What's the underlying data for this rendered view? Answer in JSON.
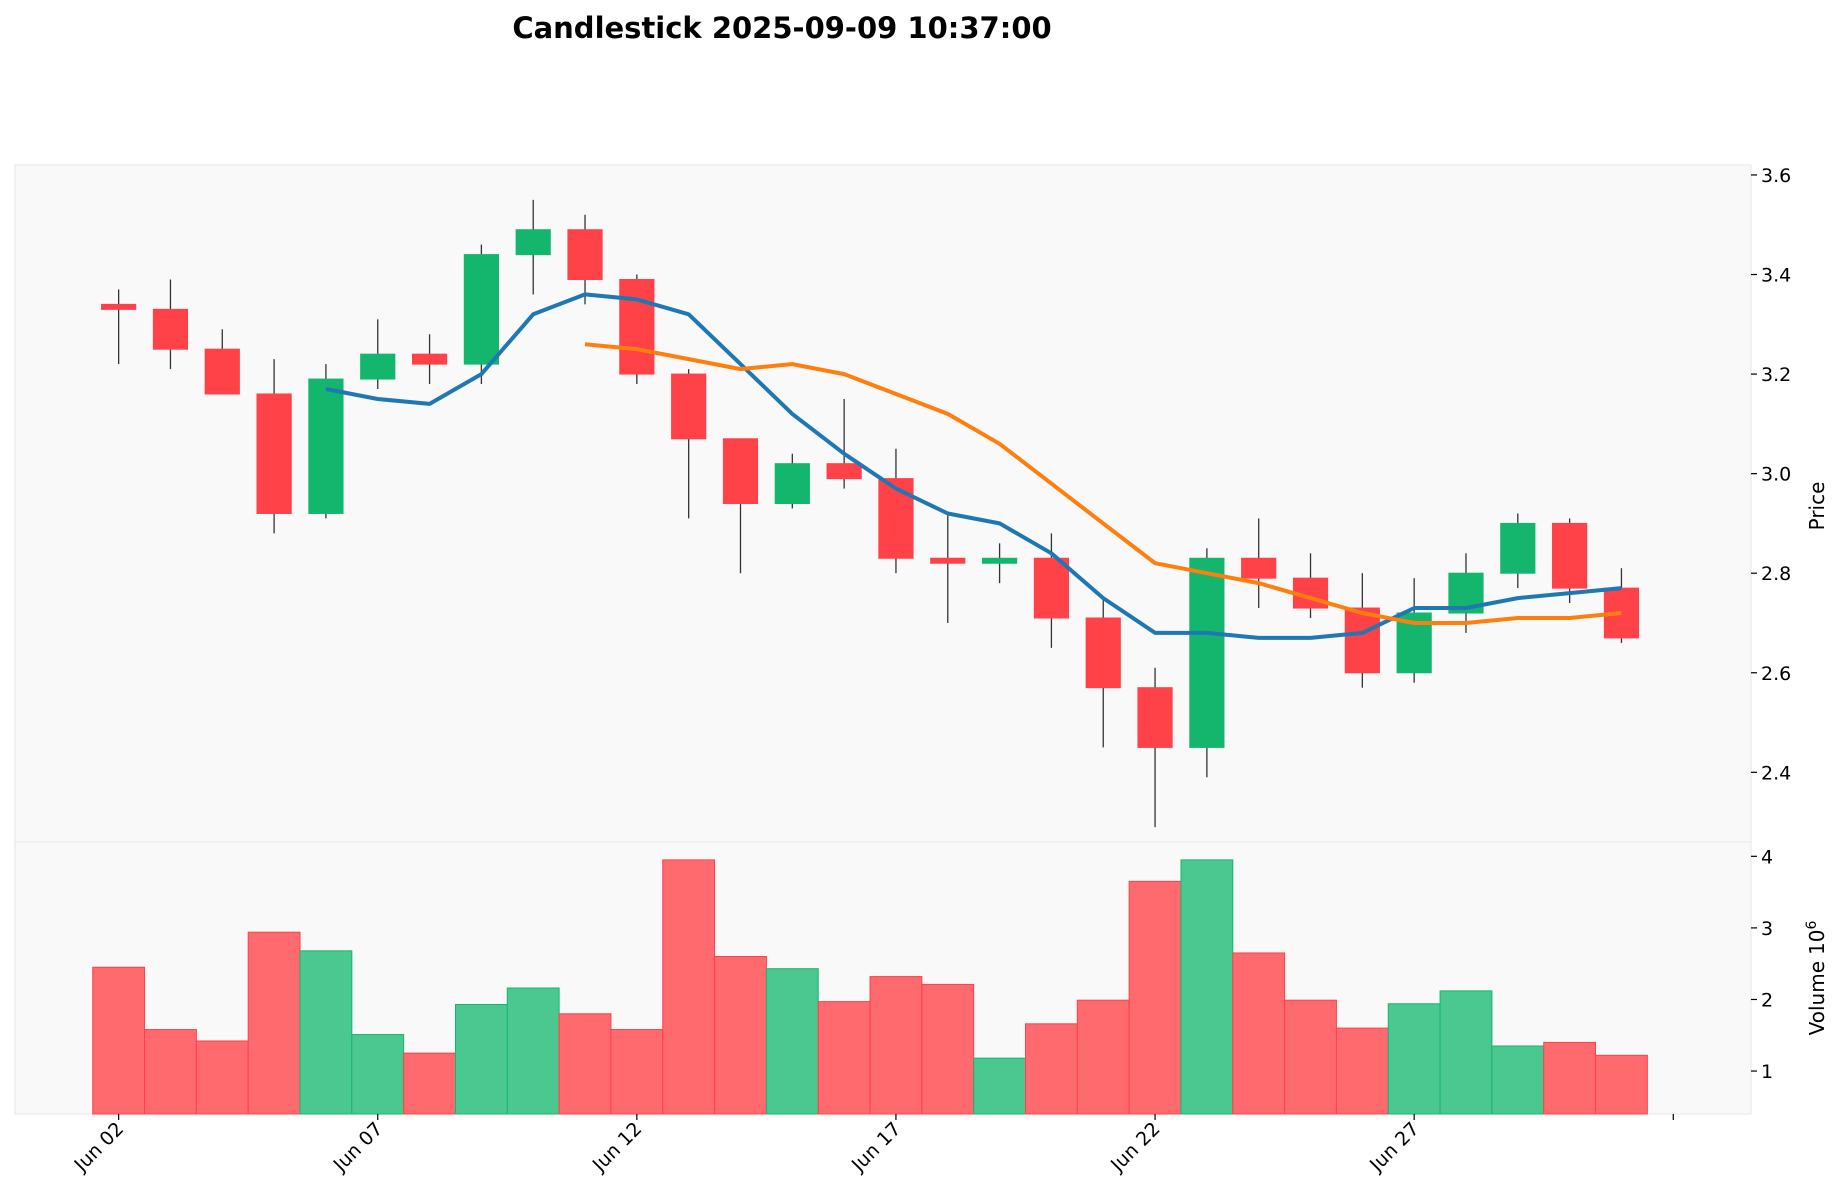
{
  "chart_data": {
    "type": "candlestick",
    "title": "Candlestick 2025-09-09 10:37:00",
    "price_panel": {
      "ylabel": "Price",
      "ylim": [
        2.26,
        3.62
      ],
      "yticks": [
        2.4,
        2.6,
        2.8,
        3.0,
        3.2,
        3.4,
        3.6
      ],
      "ytick_labels": [
        "2.4",
        "2.6",
        "2.8",
        "3.0",
        "3.2",
        "3.4",
        "3.6"
      ],
      "axis_side": "right",
      "background": "#f9f9f9",
      "up_color": "#14b66e",
      "down_color": "#ff4148",
      "wick_color": "#333333"
    },
    "volume_panel": {
      "ylabel": "Volume",
      "ylabel_exponent": "10^6",
      "ylim": [
        0.4,
        4.2
      ],
      "yticks": [
        1,
        2,
        3,
        4
      ],
      "ytick_labels": [
        "1",
        "2",
        "3",
        "4"
      ],
      "axis_side": "right",
      "up_color": "#4bc88f",
      "down_color": "#ff6a6e"
    },
    "x_ticks": [
      "Jun 02",
      "Jun 07",
      "Jun 12",
      "Jun 17",
      "Jun 22",
      "Jun 27",
      ""
    ],
    "x_tick_days": [
      2,
      7,
      12,
      17,
      22,
      27,
      32
    ],
    "x_range_days": [
      0,
      33.5
    ],
    "candles": [
      {
        "date": "Jun 02",
        "day": 2,
        "open": 3.34,
        "high": 3.37,
        "low": 3.22,
        "close": 3.33,
        "volume": 2.45
      },
      {
        "date": "Jun 03",
        "day": 3,
        "open": 3.33,
        "high": 3.39,
        "low": 3.21,
        "close": 3.25,
        "volume": 1.58
      },
      {
        "date": "Jun 04",
        "day": 4,
        "open": 3.25,
        "high": 3.29,
        "low": 3.16,
        "close": 3.16,
        "volume": 1.42
      },
      {
        "date": "Jun 05",
        "day": 5,
        "open": 3.16,
        "high": 3.23,
        "low": 2.88,
        "close": 2.92,
        "volume": 2.94
      },
      {
        "date": "Jun 06",
        "day": 6,
        "open": 2.92,
        "high": 3.22,
        "low": 2.91,
        "close": 3.19,
        "volume": 2.68
      },
      {
        "date": "Jun 07",
        "day": 7,
        "open": 3.19,
        "high": 3.31,
        "low": 3.17,
        "close": 3.24,
        "volume": 1.51
      },
      {
        "date": "Jun 08",
        "day": 8,
        "open": 3.24,
        "high": 3.28,
        "low": 3.18,
        "close": 3.22,
        "volume": 1.25
      },
      {
        "date": "Jun 09",
        "day": 9,
        "open": 3.22,
        "high": 3.46,
        "low": 3.18,
        "close": 3.44,
        "volume": 1.93
      },
      {
        "date": "Jun 10",
        "day": 10,
        "open": 3.44,
        "high": 3.55,
        "low": 3.36,
        "close": 3.49,
        "volume": 2.16
      },
      {
        "date": "Jun 11",
        "day": 11,
        "open": 3.49,
        "high": 3.52,
        "low": 3.34,
        "close": 3.39,
        "volume": 1.8
      },
      {
        "date": "Jun 12",
        "day": 12,
        "open": 3.39,
        "high": 3.4,
        "low": 3.18,
        "close": 3.2,
        "volume": 1.58
      },
      {
        "date": "Jun 13",
        "day": 13,
        "open": 3.2,
        "high": 3.21,
        "low": 2.91,
        "close": 3.07,
        "volume": 3.95
      },
      {
        "date": "Jun 14",
        "day": 14,
        "open": 3.07,
        "high": 3.07,
        "low": 2.8,
        "close": 2.94,
        "volume": 2.6
      },
      {
        "date": "Jun 15",
        "day": 15,
        "open": 2.94,
        "high": 3.04,
        "low": 2.93,
        "close": 3.02,
        "volume": 2.43
      },
      {
        "date": "Jun 16",
        "day": 16,
        "open": 3.02,
        "high": 3.15,
        "low": 2.97,
        "close": 2.99,
        "volume": 1.97
      },
      {
        "date": "Jun 17",
        "day": 17,
        "open": 2.99,
        "high": 3.05,
        "low": 2.8,
        "close": 2.83,
        "volume": 2.32
      },
      {
        "date": "Jun 18",
        "day": 18,
        "open": 2.83,
        "high": 2.92,
        "low": 2.7,
        "close": 2.82,
        "volume": 2.21
      },
      {
        "date": "Jun 19",
        "day": 19,
        "open": 2.82,
        "high": 2.86,
        "low": 2.78,
        "close": 2.83,
        "volume": 1.18
      },
      {
        "date": "Jun 20",
        "day": 20,
        "open": 2.83,
        "high": 2.88,
        "low": 2.65,
        "close": 2.71,
        "volume": 1.66
      },
      {
        "date": "Jun 21",
        "day": 21,
        "open": 2.71,
        "high": 2.75,
        "low": 2.45,
        "close": 2.57,
        "volume": 1.99
      },
      {
        "date": "Jun 22",
        "day": 22,
        "open": 2.57,
        "high": 2.61,
        "low": 2.29,
        "close": 2.45,
        "volume": 3.65
      },
      {
        "date": "Jun 23",
        "day": 23,
        "open": 2.45,
        "high": 2.85,
        "low": 2.39,
        "close": 2.83,
        "volume": 3.95
      },
      {
        "date": "Jun 24",
        "day": 24,
        "open": 2.83,
        "high": 2.91,
        "low": 2.73,
        "close": 2.79,
        "volume": 2.65
      },
      {
        "date": "Jun 25",
        "day": 25,
        "open": 2.79,
        "high": 2.84,
        "low": 2.71,
        "close": 2.73,
        "volume": 1.99
      },
      {
        "date": "Jun 26",
        "day": 26,
        "open": 2.73,
        "high": 2.8,
        "low": 2.57,
        "close": 2.6,
        "volume": 1.6
      },
      {
        "date": "Jun 27",
        "day": 27,
        "open": 2.6,
        "high": 2.79,
        "low": 2.58,
        "close": 2.72,
        "volume": 1.94
      },
      {
        "date": "Jun 28",
        "day": 28,
        "open": 2.72,
        "high": 2.84,
        "low": 2.68,
        "close": 2.8,
        "volume": 2.12
      },
      {
        "date": "Jun 29",
        "day": 29,
        "open": 2.8,
        "high": 2.92,
        "low": 2.77,
        "close": 2.9,
        "volume": 1.35
      },
      {
        "date": "Jun 30",
        "day": 30,
        "open": 2.9,
        "high": 2.91,
        "low": 2.74,
        "close": 2.77,
        "volume": 1.4
      },
      {
        "date": "Jul 01",
        "day": 31,
        "open": 2.77,
        "high": 2.81,
        "low": 2.66,
        "close": 2.67,
        "volume": 1.22
      }
    ],
    "moving_averages": [
      {
        "color": "#1f77b4",
        "start_day": 6,
        "values": [
          3.17,
          3.15,
          3.14,
          3.2,
          3.32,
          3.36,
          3.35,
          3.32,
          3.22,
          3.12,
          3.04,
          2.97,
          2.92,
          2.9,
          2.84,
          2.75,
          2.68,
          2.68,
          2.67,
          2.67,
          2.68,
          2.73,
          2.73,
          2.75,
          2.76,
          2.77
        ]
      },
      {
        "color": "#ff7f0e",
        "start_day": 11,
        "values": [
          3.26,
          3.25,
          3.23,
          3.21,
          3.22,
          3.2,
          3.16,
          3.12,
          3.06,
          2.98,
          2.9,
          2.82,
          2.8,
          2.78,
          2.75,
          2.72,
          2.7,
          2.7,
          2.71,
          2.71,
          2.72
        ]
      }
    ]
  }
}
